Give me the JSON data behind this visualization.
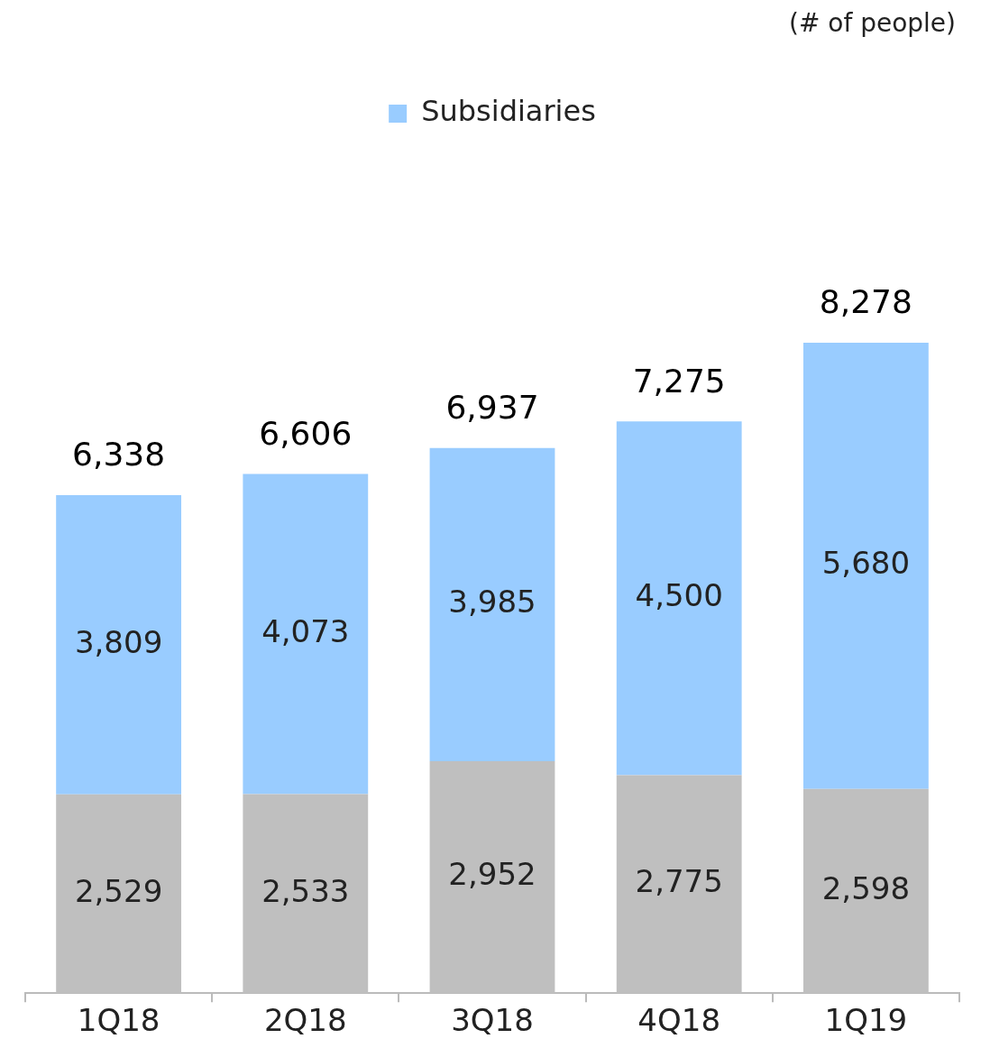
{
  "chart_data": {
    "type": "bar",
    "stacked": true,
    "categories": [
      "1Q18",
      "2Q18",
      "3Q18",
      "4Q18",
      "1Q19"
    ],
    "series": [
      {
        "color": "#bfbfbf",
        "values": [
          2529,
          2533,
          2952,
          2775,
          2598
        ],
        "value_labels": [
          "2,529",
          "2,533",
          "2,952",
          "2,775",
          "2,598"
        ]
      },
      {
        "name": "Subsidiaries",
        "color": "#99ccff",
        "values": [
          3809,
          4073,
          3985,
          4500,
          5680
        ],
        "value_labels": [
          "3,809",
          "4,073",
          "3,985",
          "4,500",
          "5,680"
        ]
      }
    ],
    "totals": [
      "6,338",
      "6,606",
      "6,937",
      "7,275",
      "8,278"
    ],
    "legend": "top",
    "annotations": [
      "(# of people)"
    ],
    "grid": false
  }
}
